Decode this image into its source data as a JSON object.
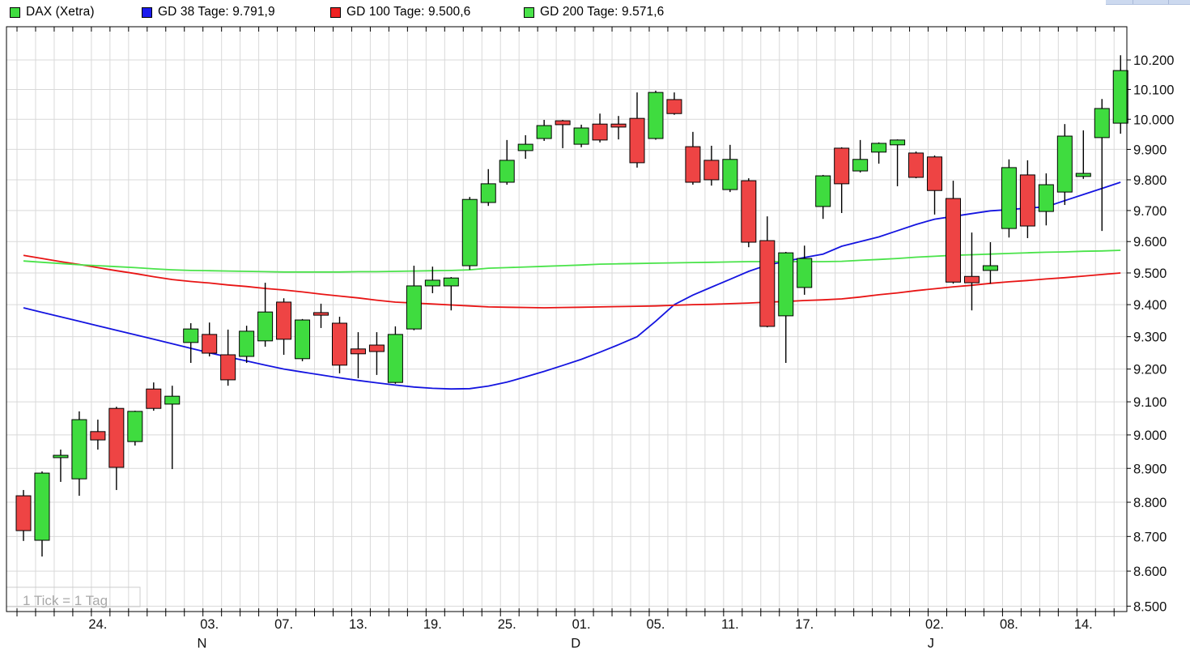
{
  "legend": {
    "items": [
      {
        "label": "DAX (Xetra)",
        "color": "#3fdc3f"
      },
      {
        "label": "GD 38 Tage: 9.791,9",
        "color": "#1a1aee"
      },
      {
        "label": "GD 100 Tage: 9.500,6",
        "color": "#ee2222"
      },
      {
        "label": "GD 200 Tage: 9.571,6",
        "color": "#4ae34a"
      }
    ]
  },
  "footnote": "1 Tick = 1 Tag",
  "colors": {
    "candle_up": "#3fdc3f",
    "candle_down": "#ee4444",
    "candle_outline": "#000000",
    "wick": "#000000",
    "grid": "#d9d9d9",
    "axis": "#000000",
    "footnote_text": "#a9a9a9",
    "footnote_box": "#cccccc",
    "ma38": "#1414e0",
    "ma100": "#e81414",
    "ma200": "#4ae34a",
    "background": "#ffffff"
  },
  "chart_data": {
    "type": "candlestick",
    "title": "DAX (Xetra)",
    "tick_note": "1 Tick = 1 Tag",
    "y_scale": "log",
    "y_range": [
      8500,
      10216
    ],
    "y_axis": {
      "tick_values": [
        10200,
        10100,
        10000,
        9900,
        9800,
        9700,
        9600,
        9500,
        9400,
        9300,
        9200,
        9100,
        9000,
        8900,
        8800,
        8700,
        8600,
        8500
      ],
      "tick_labels": [
        "10.200",
        "10.100",
        "10.000",
        "9.900",
        "9.800",
        "9.700",
        "9.600",
        "9.500",
        "9.400",
        "9.300",
        "9.200",
        "9.100",
        "9.000",
        "8.900",
        "8.800",
        "8.700",
        "8.600",
        "8.500"
      ]
    },
    "x_axis": {
      "date_labels": [
        {
          "text": "24.",
          "day": 4
        },
        {
          "text": "03.",
          "day": 10
        },
        {
          "text": "07.",
          "day": 14
        },
        {
          "text": "13.",
          "day": 18
        },
        {
          "text": "19.",
          "day": 22
        },
        {
          "text": "25.",
          "day": 26
        },
        {
          "text": "01.",
          "day": 30
        },
        {
          "text": "05.",
          "day": 34
        },
        {
          "text": "11.",
          "day": 38
        },
        {
          "text": "17.",
          "day": 42
        },
        {
          "text": "02.",
          "day": 49
        },
        {
          "text": "08.",
          "day": 53
        },
        {
          "text": "14.",
          "day": 57
        }
      ],
      "month_labels": [
        {
          "text": "N",
          "day": 9.6
        },
        {
          "text": "D",
          "day": 29.7
        },
        {
          "text": "J",
          "day": 48.8
        }
      ]
    },
    "candles_format": [
      "open",
      "high",
      "low",
      "close"
    ],
    "candles": [
      [
        8819,
        8836,
        8687,
        8717
      ],
      [
        8689,
        8891,
        8642,
        8886
      ],
      [
        8932,
        8956,
        8860,
        8939
      ],
      [
        8869,
        9071,
        8819,
        9046
      ],
      [
        9010,
        9046,
        8956,
        8985
      ],
      [
        9080,
        9085,
        8836,
        8903
      ],
      [
        8980,
        9073,
        8968,
        9071
      ],
      [
        9139,
        9159,
        9073,
        9080
      ],
      [
        9093,
        9149,
        8898,
        9117
      ],
      [
        9282,
        9342,
        9219,
        9324
      ],
      [
        9307,
        9344,
        9239,
        9249
      ],
      [
        9244,
        9322,
        9149,
        9167
      ],
      [
        9239,
        9334,
        9219,
        9317
      ],
      [
        9287,
        9469,
        9269,
        9377
      ],
      [
        9408,
        9420,
        9244,
        9292
      ],
      [
        9232,
        9355,
        9224,
        9352
      ],
      [
        9375,
        9403,
        9327,
        9367
      ],
      [
        9342,
        9362,
        9187,
        9212
      ],
      [
        9262,
        9314,
        9172,
        9247
      ],
      [
        9274,
        9314,
        9182,
        9254
      ],
      [
        9159,
        9332,
        9155,
        9307
      ],
      [
        9324,
        9523,
        9320,
        9459
      ],
      [
        9459,
        9520,
        9436,
        9477
      ],
      [
        9459,
        9487,
        9382,
        9484
      ],
      [
        9523,
        9744,
        9510,
        9736
      ],
      [
        9726,
        9835,
        9715,
        9787
      ],
      [
        9792,
        9931,
        9784,
        9864
      ],
      [
        9896,
        9947,
        9869,
        9917
      ],
      [
        9936,
        9998,
        9928,
        9979
      ],
      [
        9995,
        9998,
        9904,
        9982
      ],
      [
        9917,
        9982,
        9907,
        9971
      ],
      [
        9984,
        10019,
        9923,
        9931
      ],
      [
        9984,
        10011,
        9933,
        9974
      ],
      [
        10003,
        10090,
        9840,
        9856
      ],
      [
        9936,
        10096,
        9932,
        10090
      ],
      [
        10066,
        10090,
        10015,
        10019
      ],
      [
        9909,
        9958,
        9784,
        9792
      ],
      [
        9864,
        9912,
        9781,
        9800
      ],
      [
        9768,
        9915,
        9760,
        9867
      ],
      [
        9797,
        9805,
        9582,
        9598
      ],
      [
        9603,
        9681,
        9329,
        9332
      ],
      [
        9365,
        9567,
        9219,
        9564
      ],
      [
        9454,
        9587,
        9431,
        9546
      ],
      [
        9713,
        9816,
        9673,
        9813
      ],
      [
        9904,
        9907,
        9692,
        9787
      ],
      [
        9829,
        9931,
        9824,
        9867
      ],
      [
        9891,
        9923,
        9853,
        9920
      ],
      [
        9915,
        9933,
        9779,
        9931
      ],
      [
        9888,
        9893,
        9805,
        9808
      ],
      [
        9875,
        9880,
        9687,
        9765
      ],
      [
        9739,
        9797,
        9466,
        9471
      ],
      [
        9489,
        9629,
        9382,
        9469
      ],
      [
        9508,
        9598,
        9466,
        9523
      ],
      [
        9642,
        9867,
        9613,
        9840
      ],
      [
        9816,
        9864,
        9611,
        9650
      ],
      [
        9697,
        9821,
        9652,
        9784
      ],
      [
        9760,
        9984,
        9718,
        9944
      ],
      [
        9811,
        9963,
        9803,
        9821
      ],
      [
        9939,
        10068,
        9634,
        10036
      ],
      [
        9987,
        10216,
        9952,
        10164
      ]
    ],
    "moving_averages": [
      {
        "name": "GD 38 Tage",
        "current_label": "9.791,9",
        "color_key": "ma38",
        "values": [
          9390,
          9376,
          9362,
          9348,
          9334,
          9320,
          9306,
          9292,
          9278,
          9264,
          9250,
          9237,
          9225,
          9212,
          9200,
          9191,
          9182,
          9173,
          9165,
          9158,
          9151,
          9145,
          9141,
          9139,
          9140,
          9148,
          9160,
          9176,
          9193,
          9211,
          9230,
          9252,
          9275,
          9300,
          9348,
          9400,
          9430,
          9455,
          9480,
          9505,
          9525,
          9537,
          9549,
          9560,
          9585,
          9600,
          9615,
          9635,
          9655,
          9672,
          9681,
          9690,
          9699,
          9703,
          9708,
          9712,
          9732,
          9752,
          9772,
          9792
        ]
      },
      {
        "name": "GD 100 Tage",
        "current_label": "9.500,6",
        "color_key": "ma100",
        "values": [
          9556,
          9546,
          9536,
          9527,
          9517,
          9507,
          9498,
          9488,
          9479,
          9473,
          9468,
          9462,
          9457,
          9451,
          9446,
          9440,
          9433,
          9427,
          9421,
          9414,
          9408,
          9405,
          9402,
          9399,
          9396,
          9393,
          9392,
          9391,
          9390,
          9391,
          9392,
          9393,
          9394,
          9395,
          9396,
          9398,
          9400,
          9401,
          9403,
          9405,
          9408,
          9410,
          9413,
          9415,
          9418,
          9424,
          9431,
          9437,
          9444,
          9450,
          9456,
          9461,
          9467,
          9472,
          9476,
          9481,
          9485,
          9490,
          9495,
          9500
        ]
      },
      {
        "name": "GD 200 Tage",
        "current_label": "9.571,6",
        "color_key": "ma200",
        "values": [
          9538,
          9534,
          9530,
          9526,
          9523,
          9520,
          9517,
          9513,
          9510,
          9508,
          9507,
          9506,
          9505,
          9504,
          9503,
          9503,
          9503,
          9503,
          9504,
          9504,
          9505,
          9506,
          9507,
          9508,
          9510,
          9515,
          9517,
          9519,
          9521,
          9523,
          9525,
          9528,
          9529,
          9530,
          9531,
          9532,
          9533,
          9534,
          9535,
          9536,
          9536,
          9536,
          9536,
          9536,
          9537,
          9540,
          9543,
          9546,
          9550,
          9553,
          9556,
          9558,
          9560,
          9562,
          9564,
          9566,
          9567,
          9569,
          9570,
          9572
        ]
      }
    ]
  }
}
